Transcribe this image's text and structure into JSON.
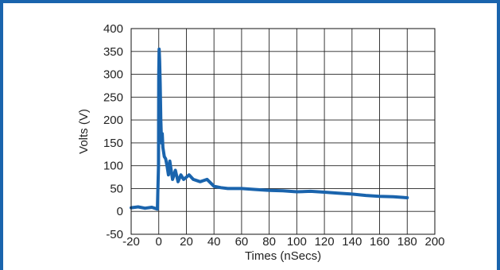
{
  "chart_data": {
    "type": "line",
    "title": "",
    "xlabel": "Times (nSecs)",
    "ylabel": "Volts (V)",
    "xlim": [
      -20,
      200
    ],
    "ylim": [
      -50,
      400
    ],
    "x_ticks": [
      -20,
      0,
      20,
      40,
      60,
      80,
      100,
      120,
      140,
      160,
      180,
      200
    ],
    "y_ticks": [
      -50,
      0,
      50,
      100,
      150,
      200,
      250,
      300,
      350,
      400
    ],
    "grid": true,
    "legend": "none",
    "series_color": "#1a64ad",
    "frame_color": "#1a64ad",
    "series": [
      {
        "x": [
          -20,
          -15,
          -10,
          -5,
          -1,
          -0.2,
          0,
          0.3,
          0.6,
          1.0,
          1.5,
          2.0,
          2.5,
          3.0,
          4.0,
          5.0,
          6.0,
          7.0,
          8.0,
          10,
          12,
          14,
          16,
          18,
          20,
          22,
          25,
          30,
          35,
          40,
          45,
          50,
          60,
          70,
          80,
          90,
          100,
          110,
          120,
          130,
          140,
          150,
          160,
          170,
          180
        ],
        "y": [
          8,
          10,
          7,
          9,
          5,
          100,
          300,
          355,
          330,
          280,
          200,
          150,
          170,
          140,
          120,
          115,
          100,
          80,
          110,
          70,
          90,
          65,
          80,
          70,
          75,
          80,
          70,
          65,
          70,
          55,
          52,
          50,
          50,
          48,
          46,
          45,
          43,
          44,
          42,
          40,
          38,
          35,
          33,
          32,
          30
        ]
      }
    ]
  }
}
